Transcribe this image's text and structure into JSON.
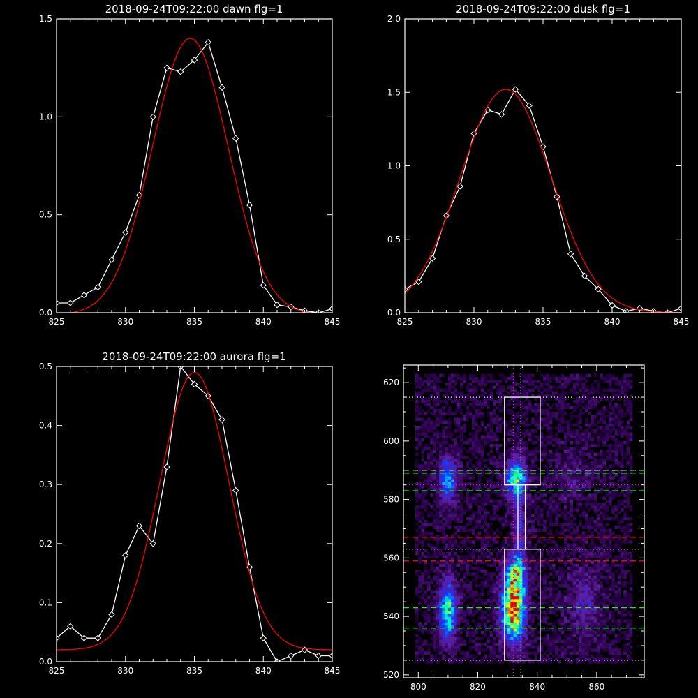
{
  "chart_data": [
    {
      "type": "line",
      "title": "2018-09-24T09:22:00 dawn flg=1",
      "xlim": [
        825,
        845
      ],
      "ylim": [
        0,
        1.5
      ],
      "xticks": [
        "825",
        "830",
        "835",
        "840",
        "845"
      ],
      "yticks": [
        "0.0",
        "0.5",
        "1.0",
        "1.5"
      ],
      "series": [
        {
          "color": "#ffffff",
          "markers": true,
          "x": [
            825,
            826,
            827,
            828,
            829,
            830,
            831,
            832,
            833,
            834,
            835,
            836,
            837,
            838,
            839,
            840,
            841,
            842,
            843,
            844,
            845
          ],
          "y": [
            0.05,
            0.05,
            0.09,
            0.13,
            0.27,
            0.41,
            0.6,
            1.0,
            1.25,
            1.23,
            1.29,
            1.38,
            1.15,
            0.89,
            0.55,
            0.14,
            0.04,
            0.03,
            0.01,
            0.0,
            0.02
          ]
        },
        {
          "color": "#ff0000",
          "markers": false,
          "gaussian": {
            "amp": 1.41,
            "center": 834.7,
            "sigma": 2.75,
            "offset": -0.01
          }
        }
      ]
    },
    {
      "type": "line",
      "title": "2018-09-24T09:22:00 dusk flg=1",
      "xlim": [
        825,
        845
      ],
      "ylim": [
        0,
        2.0
      ],
      "xticks": [
        "825",
        "830",
        "835",
        "840",
        "845"
      ],
      "yticks": [
        "0.0",
        "0.5",
        "1.0",
        "1.5",
        "2.0"
      ],
      "series": [
        {
          "color": "#ffffff",
          "markers": true,
          "x": [
            825,
            826,
            827,
            828,
            829,
            830,
            831,
            832,
            833,
            834,
            835,
            836,
            837,
            838,
            839,
            840,
            841,
            842,
            843,
            844,
            845
          ],
          "y": [
            0.16,
            0.21,
            0.37,
            0.66,
            0.86,
            1.22,
            1.38,
            1.35,
            1.52,
            1.41,
            1.13,
            0.79,
            0.4,
            0.25,
            0.16,
            0.05,
            0.01,
            0.03,
            0.01,
            0.0,
            0.03
          ]
        },
        {
          "color": "#ff0000",
          "markers": false,
          "gaussian": {
            "amp": 1.52,
            "center": 832.3,
            "sigma": 3.3,
            "offset": 0.0
          }
        }
      ]
    },
    {
      "type": "line",
      "title": "2018-09-24T09:22:00 aurora flg=1",
      "xlim": [
        825,
        845
      ],
      "ylim": [
        0,
        0.5
      ],
      "xticks": [
        "825",
        "830",
        "835",
        "840",
        "845"
      ],
      "yticks": [
        "0.0",
        "0.1",
        "0.2",
        "0.3",
        "0.4",
        "0.5"
      ],
      "series": [
        {
          "color": "#ffffff",
          "markers": true,
          "x": [
            825,
            826,
            827,
            828,
            829,
            830,
            831,
            832,
            833,
            834,
            835,
            836,
            837,
            838,
            839,
            840,
            841,
            842,
            843,
            844,
            845
          ],
          "y": [
            0.04,
            0.06,
            0.04,
            0.04,
            0.08,
            0.18,
            0.23,
            0.2,
            0.33,
            0.5,
            0.47,
            0.45,
            0.41,
            0.29,
            0.16,
            0.04,
            0.0,
            0.01,
            0.02,
            0.01,
            0.01
          ]
        },
        {
          "color": "#ff0000",
          "markers": false,
          "gaussian": {
            "amp": 0.47,
            "center": 835.0,
            "sigma": 2.5,
            "offset": 0.02
          }
        }
      ]
    },
    {
      "type": "heatmap",
      "title": "",
      "xlim": [
        795,
        876
      ],
      "ylim": [
        519,
        626
      ],
      "xticks": [
        "800",
        "820",
        "840",
        "860"
      ],
      "yticks": [
        "520",
        "540",
        "560",
        "580",
        "600",
        "620"
      ],
      "sources": [
        {
          "x": 810,
          "y": 587,
          "sx": 2.0,
          "sy": 5.0,
          "amp": 0.42
        },
        {
          "x": 833,
          "y": 587,
          "sx": 2.2,
          "sy": 4.5,
          "amp": 0.6
        },
        {
          "x": 810,
          "y": 542,
          "sx": 2.0,
          "sy": 6.5,
          "amp": 0.55
        },
        {
          "x": 832,
          "y": 543,
          "sx": 2.6,
          "sy": 7.5,
          "amp": 0.9
        },
        {
          "x": 833,
          "y": 555,
          "sx": 2.2,
          "sy": 4.0,
          "amp": 0.45
        },
        {
          "x": 834,
          "y": 570,
          "sx": 1.4,
          "sy": 8.0,
          "amp": 0.22
        },
        {
          "x": 856,
          "y": 545,
          "sx": 4.0,
          "sy": 9.0,
          "amp": 0.14
        },
        {
          "x": 852,
          "y": 588,
          "sx": 4.0,
          "sy": 6.0,
          "amp": 0.1
        }
      ],
      "boxes": [
        {
          "x0": 829,
          "x1": 841,
          "y0": 585,
          "y1": 615,
          "color": "#ffffff"
        },
        {
          "x0": 829,
          "x1": 841,
          "y0": 525,
          "y1": 563,
          "color": "#ffffff"
        }
      ],
      "hlines": [
        {
          "y": 615,
          "color": "#ffffff",
          "style": "dotted"
        },
        {
          "y": 590,
          "color": "#ffffff",
          "style": "dashed"
        },
        {
          "y": 589,
          "color": "#00ff00",
          "style": "dashed"
        },
        {
          "y": 585,
          "color": "#ff00ff",
          "style": "dotted"
        },
        {
          "y": 583,
          "color": "#00ff00",
          "style": "dashed"
        },
        {
          "y": 567,
          "color": "#ff0000",
          "style": "dashed"
        },
        {
          "y": 563,
          "color": "#ffffff",
          "style": "dotted"
        },
        {
          "y": 559,
          "color": "#ffffff",
          "style": "dashed"
        },
        {
          "y": 559,
          "color": "#ff0000",
          "style": "dashed"
        },
        {
          "y": 543,
          "color": "#00ff00",
          "style": "dashed"
        },
        {
          "y": 536,
          "color": "#00ff00",
          "style": "dashed"
        },
        {
          "y": 525,
          "color": "#ffffff",
          "style": "dotted"
        }
      ],
      "vlines": [
        {
          "x": 832.0,
          "color": "#ff00ff",
          "style": "dotted"
        },
        {
          "x": 834.5,
          "color": "#ffffff",
          "style": "dotted"
        }
      ]
    }
  ]
}
